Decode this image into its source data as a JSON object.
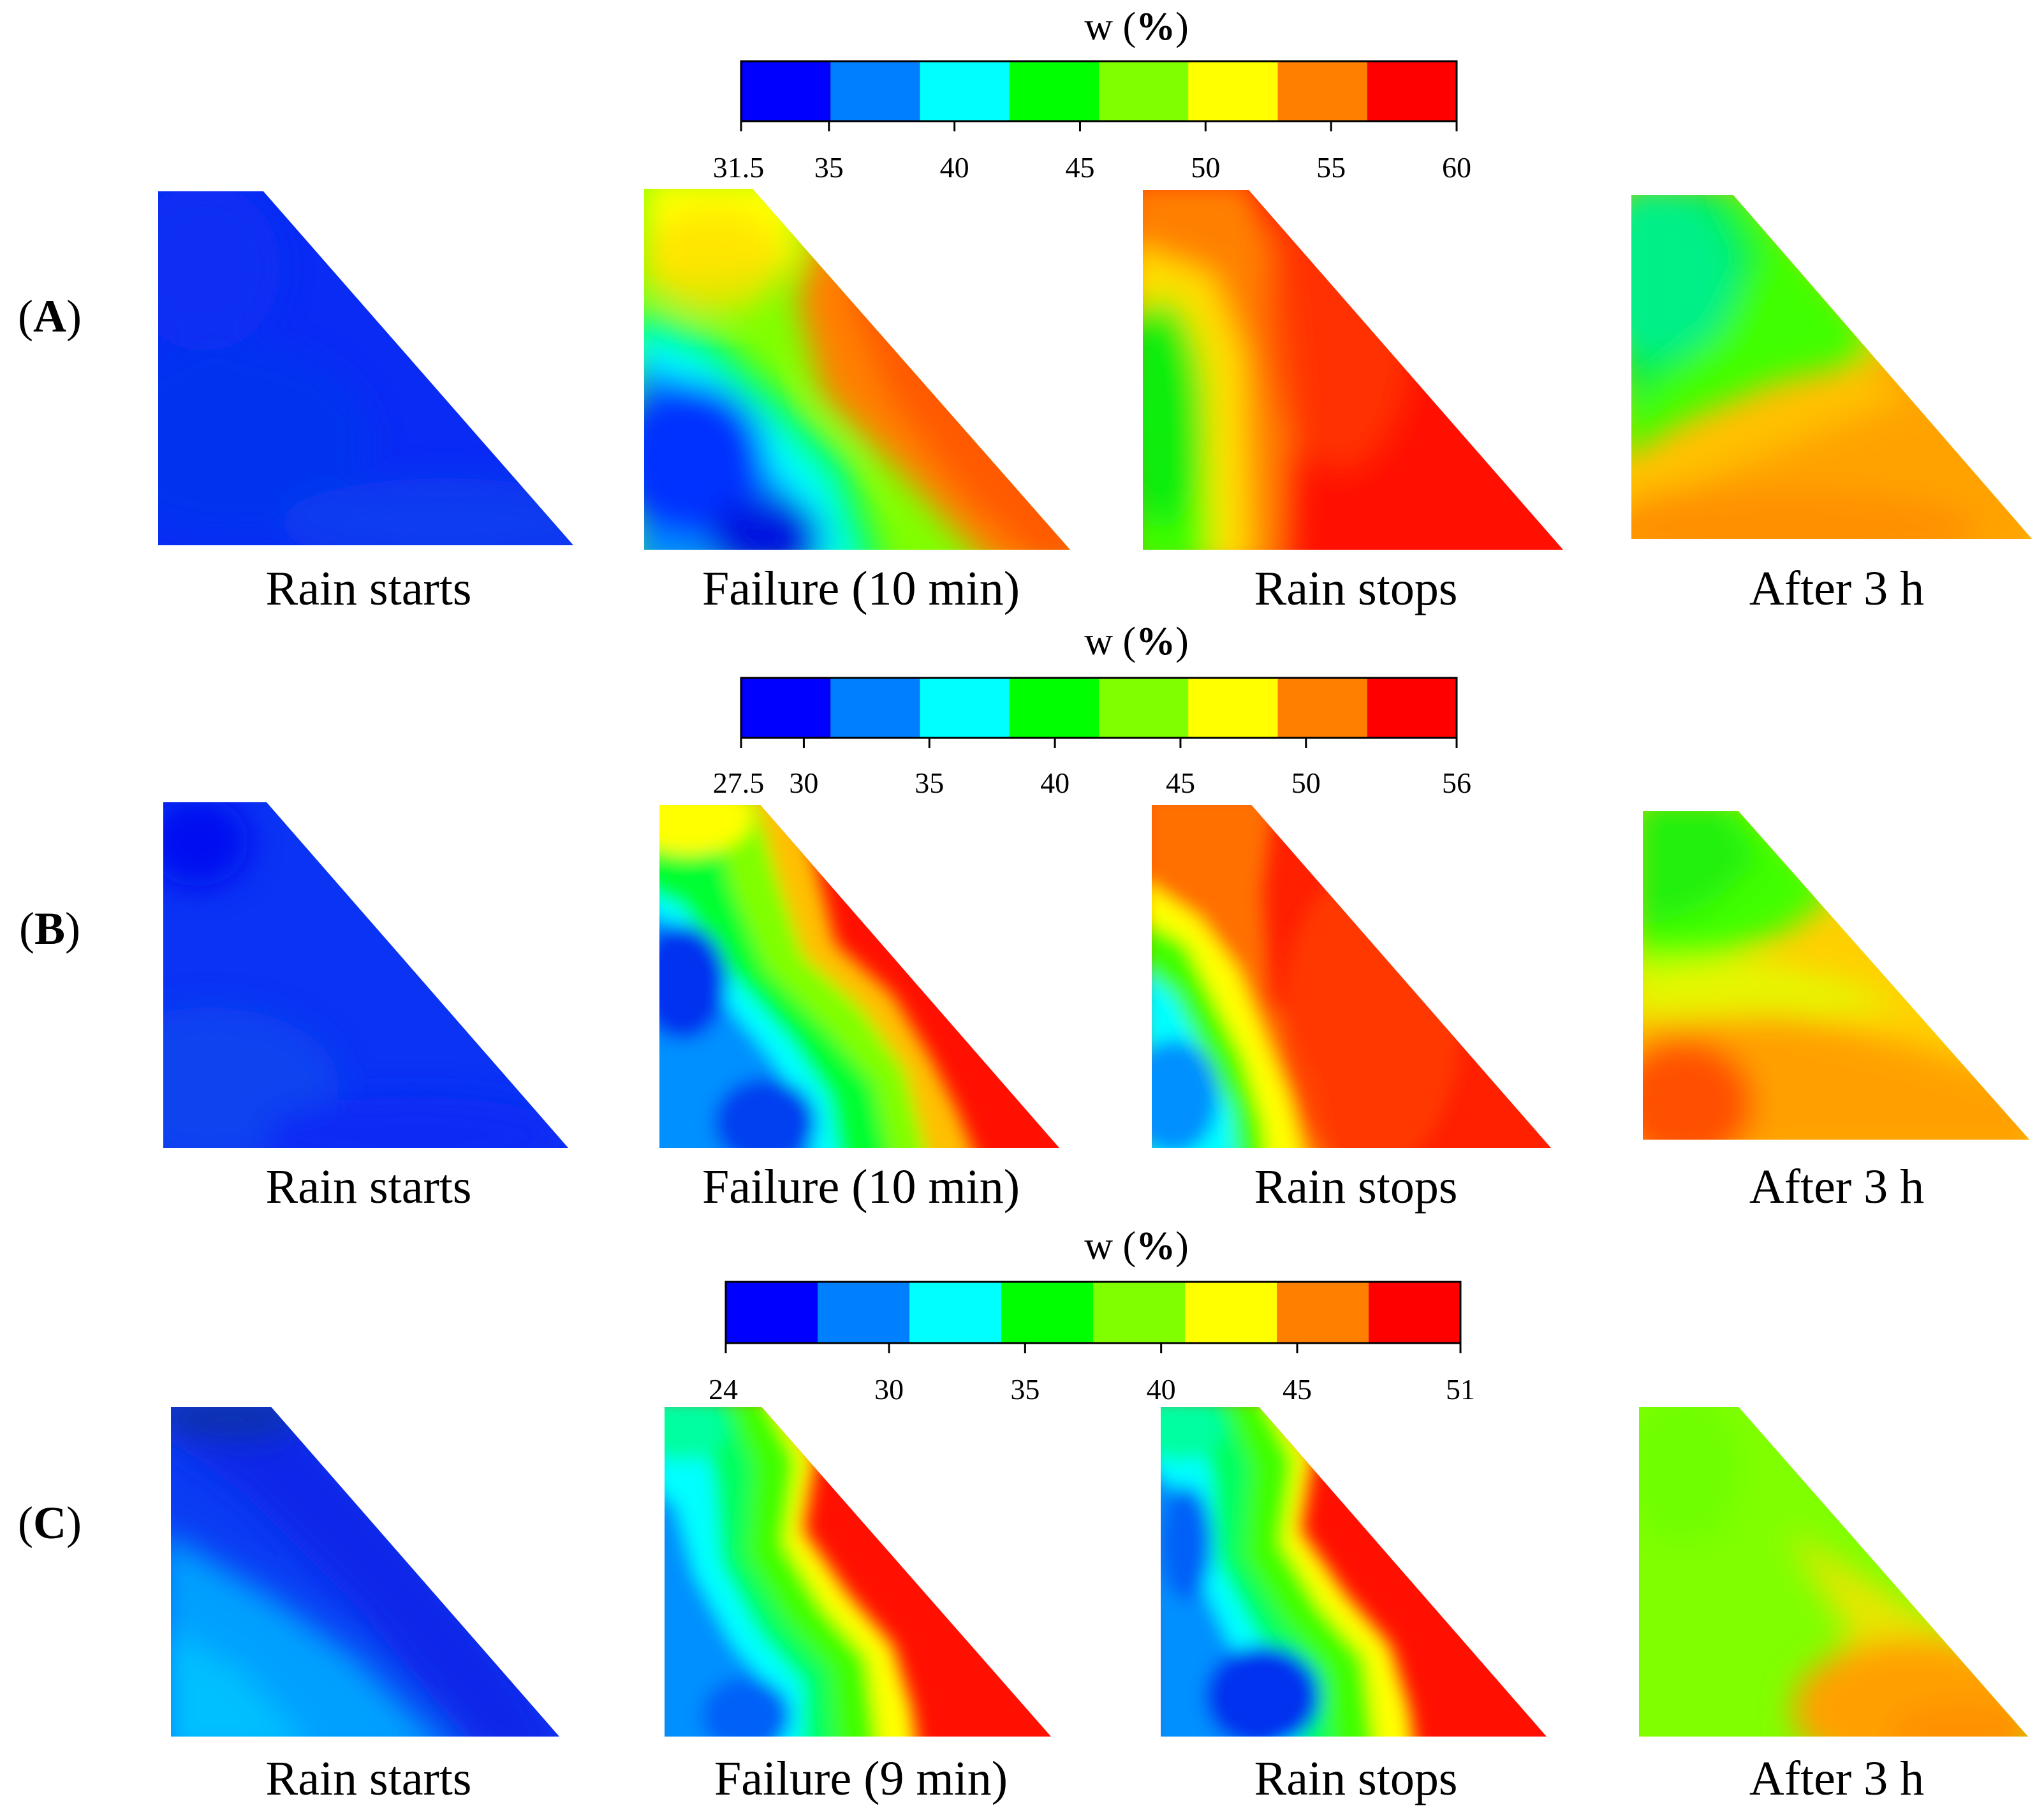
{
  "colormap": {
    "label_prefix": "w (",
    "label_unit": "%",
    "label_suffix": ")",
    "colors": [
      "#0000FF",
      "#0080FF",
      "#00FFFF",
      "#00FF00",
      "#80FF00",
      "#FFFF00",
      "#FF8000",
      "#FF0000"
    ]
  },
  "chart_data": [
    {
      "type": "heatmap",
      "row_label": "A",
      "colorbar": {
        "label": "w (%)",
        "ticks": [
          "31.5",
          "35",
          "40",
          "45",
          "50",
          "55",
          "60"
        ],
        "range": [
          31.5,
          60
        ]
      },
      "panels": [
        {
          "caption": "Rain starts",
          "shape": "trapezoid-sloped-right",
          "dominant_range_percent": [
            31.5,
            35
          ]
        },
        {
          "caption": "Failure (10 min)",
          "shape": "trapezoid-sloped-right",
          "dominant_range_percent": [
            31.5,
            60
          ]
        },
        {
          "caption": "Rain stops",
          "shape": "trapezoid-sloped-right",
          "dominant_range_percent": [
            45,
            60
          ]
        },
        {
          "caption": "After 3 h",
          "shape": "trapezoid-sloped-right",
          "dominant_range_percent": [
            42,
            56
          ]
        }
      ]
    },
    {
      "type": "heatmap",
      "row_label": "B",
      "colorbar": {
        "label": "w (%)",
        "ticks": [
          "27.5",
          "30",
          "35",
          "40",
          "45",
          "50",
          "56"
        ],
        "range": [
          27.5,
          56
        ]
      },
      "panels": [
        {
          "caption": "Rain starts",
          "shape": "trapezoid-sloped-right",
          "dominant_range_percent": [
            27.5,
            31
          ]
        },
        {
          "caption": "Failure (10 min)",
          "shape": "trapezoid-sloped-right",
          "dominant_range_percent": [
            27.5,
            56
          ]
        },
        {
          "caption": "Rain stops",
          "shape": "trapezoid-sloped-right",
          "dominant_range_percent": [
            30,
            56
          ]
        },
        {
          "caption": "After 3 h",
          "shape": "trapezoid-sloped-right",
          "dominant_range_percent": [
            40,
            52
          ]
        }
      ]
    },
    {
      "type": "heatmap",
      "row_label": "C",
      "colorbar": {
        "label": "w (%)",
        "ticks": [
          "24",
          "30",
          "35",
          "40",
          "45",
          "51"
        ],
        "range": [
          24,
          51
        ]
      },
      "panels": [
        {
          "caption": "Rain starts",
          "shape": "trapezoid-sloped-right",
          "dominant_range_percent": [
            24,
            31
          ]
        },
        {
          "caption": "Failure (9 min)",
          "shape": "trapezoid-sloped-right",
          "dominant_range_percent": [
            27,
            51
          ]
        },
        {
          "caption": "Rain stops",
          "shape": "trapezoid-sloped-right",
          "dominant_range_percent": [
            24,
            51
          ]
        },
        {
          "caption": "After 3 h",
          "shape": "trapezoid-sloped-right",
          "dominant_range_percent": [
            38,
            47
          ]
        }
      ]
    }
  ]
}
